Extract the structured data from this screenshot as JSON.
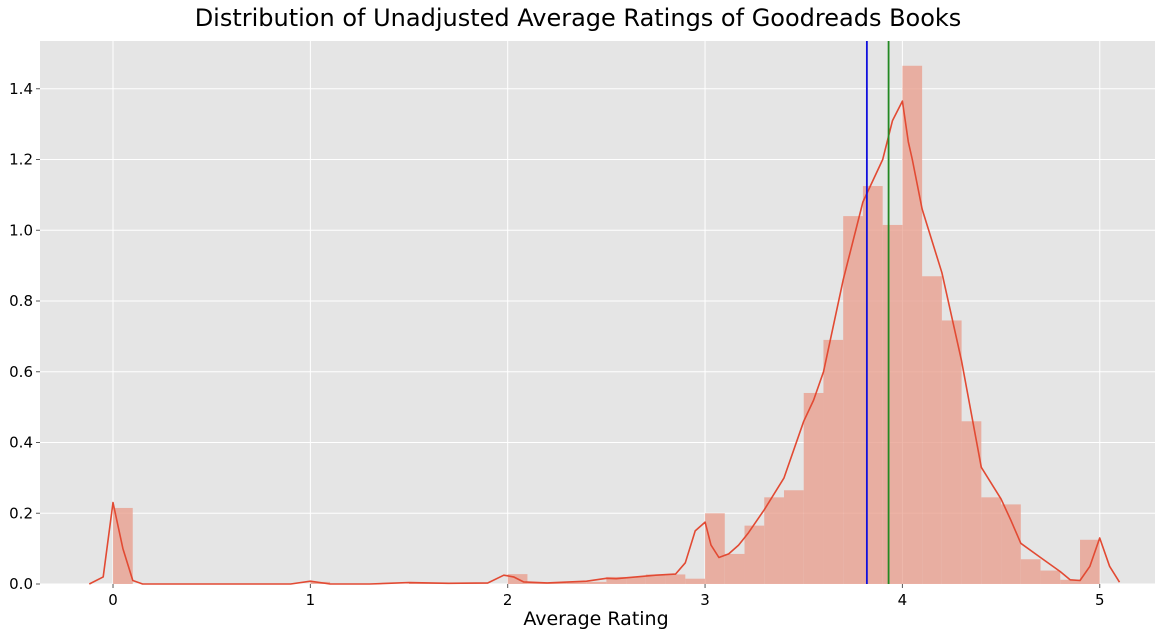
{
  "chart_data": {
    "type": "bar",
    "title": "Distribution of Unadjusted Average Ratings of Goodreads Books",
    "xlabel": "Average Rating",
    "ylabel": "",
    "xlim": [
      -0.37,
      5.28
    ],
    "ylim": [
      0,
      1.535
    ],
    "grid": true,
    "xticks": [
      0,
      1,
      2,
      3,
      4,
      5
    ],
    "xtick_labels": [
      "0",
      "1",
      "2",
      "3",
      "4",
      "5"
    ],
    "yticks": [
      0.0,
      0.2,
      0.4,
      0.6,
      0.8,
      1.0,
      1.2,
      1.4
    ],
    "ytick_labels": [
      "0.0",
      "0.2",
      "0.4",
      "0.6",
      "0.8",
      "1.0",
      "1.2",
      "1.4"
    ],
    "histogram": {
      "bin_width": 0.1,
      "bins": [
        {
          "x0": 0.0,
          "value": 0.215
        },
        {
          "x0": 1.0,
          "value": 0.006
        },
        {
          "x0": 1.5,
          "value": 0.004
        },
        {
          "x0": 1.6,
          "value": 0.002
        },
        {
          "x0": 1.7,
          "value": 0.002
        },
        {
          "x0": 1.8,
          "value": 0.002
        },
        {
          "x0": 2.0,
          "value": 0.028
        },
        {
          "x0": 2.1,
          "value": 0.003
        },
        {
          "x0": 2.2,
          "value": 0.004
        },
        {
          "x0": 2.3,
          "value": 0.006
        },
        {
          "x0": 2.4,
          "value": 0.006
        },
        {
          "x0": 2.5,
          "value": 0.02
        },
        {
          "x0": 2.6,
          "value": 0.02
        },
        {
          "x0": 2.7,
          "value": 0.027
        },
        {
          "x0": 2.8,
          "value": 0.027
        },
        {
          "x0": 2.9,
          "value": 0.015
        },
        {
          "x0": 3.0,
          "value": 0.2
        },
        {
          "x0": 3.1,
          "value": 0.085
        },
        {
          "x0": 3.2,
          "value": 0.165
        },
        {
          "x0": 3.3,
          "value": 0.245
        },
        {
          "x0": 3.4,
          "value": 0.265
        },
        {
          "x0": 3.5,
          "value": 0.54
        },
        {
          "x0": 3.6,
          "value": 0.69
        },
        {
          "x0": 3.7,
          "value": 1.04
        },
        {
          "x0": 3.8,
          "value": 1.125
        },
        {
          "x0": 3.9,
          "value": 1.015
        },
        {
          "x0": 4.0,
          "value": 1.465
        },
        {
          "x0": 4.1,
          "value": 0.87
        },
        {
          "x0": 4.2,
          "value": 0.745
        },
        {
          "x0": 4.3,
          "value": 0.46
        },
        {
          "x0": 4.4,
          "value": 0.245
        },
        {
          "x0": 4.5,
          "value": 0.225
        },
        {
          "x0": 4.6,
          "value": 0.07
        },
        {
          "x0": 4.7,
          "value": 0.038
        },
        {
          "x0": 4.8,
          "value": 0.012
        },
        {
          "x0": 4.9,
          "value": 0.125
        }
      ]
    },
    "kde": {
      "x": [
        -0.12,
        -0.05,
        0.0,
        0.05,
        0.1,
        0.15,
        0.3,
        0.6,
        0.9,
        1.0,
        1.1,
        1.3,
        1.5,
        1.7,
        1.9,
        1.98,
        2.03,
        2.08,
        2.2,
        2.4,
        2.5,
        2.55,
        2.65,
        2.75,
        2.85,
        2.9,
        2.95,
        3.0,
        3.03,
        3.07,
        3.12,
        3.17,
        3.22,
        3.3,
        3.4,
        3.5,
        3.55,
        3.6,
        3.7,
        3.8,
        3.9,
        3.95,
        4.0,
        4.03,
        4.05,
        4.1,
        4.2,
        4.3,
        4.4,
        4.5,
        4.55,
        4.6,
        4.7,
        4.8,
        4.85,
        4.9,
        4.95,
        5.0,
        5.05,
        5.1
      ],
      "y": [
        0.0,
        0.02,
        0.23,
        0.1,
        0.01,
        0.0,
        0.0,
        0.0,
        0.0,
        0.008,
        0.0,
        0.0,
        0.004,
        0.002,
        0.003,
        0.025,
        0.02,
        0.006,
        0.003,
        0.008,
        0.016,
        0.015,
        0.02,
        0.025,
        0.028,
        0.06,
        0.15,
        0.175,
        0.11,
        0.075,
        0.085,
        0.11,
        0.145,
        0.21,
        0.3,
        0.46,
        0.52,
        0.6,
        0.86,
        1.08,
        1.2,
        1.31,
        1.365,
        1.25,
        1.2,
        1.06,
        0.88,
        0.63,
        0.33,
        0.24,
        0.18,
        0.115,
        0.075,
        0.035,
        0.012,
        0.01,
        0.05,
        0.13,
        0.05,
        0.005
      ]
    },
    "reference_lines": [
      {
        "x": 3.82,
        "color": "#1010dd"
      },
      {
        "x": 3.93,
        "color": "#228822"
      }
    ],
    "colors": {
      "plot_background": "#e5e5e5",
      "grid": "#ffffff",
      "bar_fill": "#e8a090",
      "kde_line": "#e24a33"
    }
  }
}
